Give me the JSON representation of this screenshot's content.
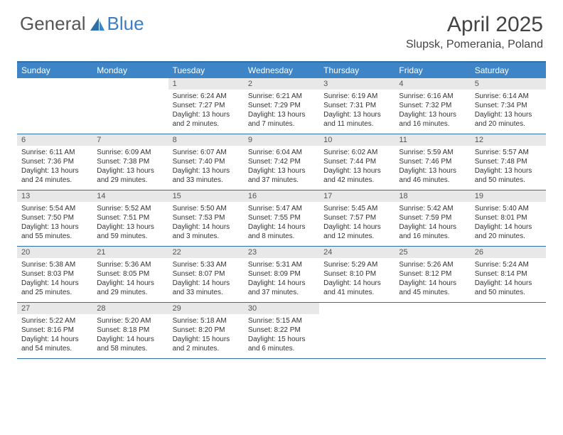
{
  "logo": {
    "part1": "General",
    "part2": "Blue"
  },
  "title": "April 2025",
  "location": "Slupsk, Pomerania, Poland",
  "colors": {
    "header_bg": "#3d85c6",
    "border": "#2f6fa8",
    "date_bg": "#e8e8e8",
    "text": "#333333"
  },
  "dayNames": [
    "Sunday",
    "Monday",
    "Tuesday",
    "Wednesday",
    "Thursday",
    "Friday",
    "Saturday"
  ],
  "weeks": [
    [
      {
        "empty": true
      },
      {
        "empty": true
      },
      {
        "date": "1",
        "sunrise": "Sunrise: 6:24 AM",
        "sunset": "Sunset: 7:27 PM",
        "daylight1": "Daylight: 13 hours",
        "daylight2": "and 2 minutes."
      },
      {
        "date": "2",
        "sunrise": "Sunrise: 6:21 AM",
        "sunset": "Sunset: 7:29 PM",
        "daylight1": "Daylight: 13 hours",
        "daylight2": "and 7 minutes."
      },
      {
        "date": "3",
        "sunrise": "Sunrise: 6:19 AM",
        "sunset": "Sunset: 7:31 PM",
        "daylight1": "Daylight: 13 hours",
        "daylight2": "and 11 minutes."
      },
      {
        "date": "4",
        "sunrise": "Sunrise: 6:16 AM",
        "sunset": "Sunset: 7:32 PM",
        "daylight1": "Daylight: 13 hours",
        "daylight2": "and 16 minutes."
      },
      {
        "date": "5",
        "sunrise": "Sunrise: 6:14 AM",
        "sunset": "Sunset: 7:34 PM",
        "daylight1": "Daylight: 13 hours",
        "daylight2": "and 20 minutes."
      }
    ],
    [
      {
        "date": "6",
        "sunrise": "Sunrise: 6:11 AM",
        "sunset": "Sunset: 7:36 PM",
        "daylight1": "Daylight: 13 hours",
        "daylight2": "and 24 minutes."
      },
      {
        "date": "7",
        "sunrise": "Sunrise: 6:09 AM",
        "sunset": "Sunset: 7:38 PM",
        "daylight1": "Daylight: 13 hours",
        "daylight2": "and 29 minutes."
      },
      {
        "date": "8",
        "sunrise": "Sunrise: 6:07 AM",
        "sunset": "Sunset: 7:40 PM",
        "daylight1": "Daylight: 13 hours",
        "daylight2": "and 33 minutes."
      },
      {
        "date": "9",
        "sunrise": "Sunrise: 6:04 AM",
        "sunset": "Sunset: 7:42 PM",
        "daylight1": "Daylight: 13 hours",
        "daylight2": "and 37 minutes."
      },
      {
        "date": "10",
        "sunrise": "Sunrise: 6:02 AM",
        "sunset": "Sunset: 7:44 PM",
        "daylight1": "Daylight: 13 hours",
        "daylight2": "and 42 minutes."
      },
      {
        "date": "11",
        "sunrise": "Sunrise: 5:59 AM",
        "sunset": "Sunset: 7:46 PM",
        "daylight1": "Daylight: 13 hours",
        "daylight2": "and 46 minutes."
      },
      {
        "date": "12",
        "sunrise": "Sunrise: 5:57 AM",
        "sunset": "Sunset: 7:48 PM",
        "daylight1": "Daylight: 13 hours",
        "daylight2": "and 50 minutes."
      }
    ],
    [
      {
        "date": "13",
        "sunrise": "Sunrise: 5:54 AM",
        "sunset": "Sunset: 7:50 PM",
        "daylight1": "Daylight: 13 hours",
        "daylight2": "and 55 minutes."
      },
      {
        "date": "14",
        "sunrise": "Sunrise: 5:52 AM",
        "sunset": "Sunset: 7:51 PM",
        "daylight1": "Daylight: 13 hours",
        "daylight2": "and 59 minutes."
      },
      {
        "date": "15",
        "sunrise": "Sunrise: 5:50 AM",
        "sunset": "Sunset: 7:53 PM",
        "daylight1": "Daylight: 14 hours",
        "daylight2": "and 3 minutes."
      },
      {
        "date": "16",
        "sunrise": "Sunrise: 5:47 AM",
        "sunset": "Sunset: 7:55 PM",
        "daylight1": "Daylight: 14 hours",
        "daylight2": "and 8 minutes."
      },
      {
        "date": "17",
        "sunrise": "Sunrise: 5:45 AM",
        "sunset": "Sunset: 7:57 PM",
        "daylight1": "Daylight: 14 hours",
        "daylight2": "and 12 minutes."
      },
      {
        "date": "18",
        "sunrise": "Sunrise: 5:42 AM",
        "sunset": "Sunset: 7:59 PM",
        "daylight1": "Daylight: 14 hours",
        "daylight2": "and 16 minutes."
      },
      {
        "date": "19",
        "sunrise": "Sunrise: 5:40 AM",
        "sunset": "Sunset: 8:01 PM",
        "daylight1": "Daylight: 14 hours",
        "daylight2": "and 20 minutes."
      }
    ],
    [
      {
        "date": "20",
        "sunrise": "Sunrise: 5:38 AM",
        "sunset": "Sunset: 8:03 PM",
        "daylight1": "Daylight: 14 hours",
        "daylight2": "and 25 minutes."
      },
      {
        "date": "21",
        "sunrise": "Sunrise: 5:36 AM",
        "sunset": "Sunset: 8:05 PM",
        "daylight1": "Daylight: 14 hours",
        "daylight2": "and 29 minutes."
      },
      {
        "date": "22",
        "sunrise": "Sunrise: 5:33 AM",
        "sunset": "Sunset: 8:07 PM",
        "daylight1": "Daylight: 14 hours",
        "daylight2": "and 33 minutes."
      },
      {
        "date": "23",
        "sunrise": "Sunrise: 5:31 AM",
        "sunset": "Sunset: 8:09 PM",
        "daylight1": "Daylight: 14 hours",
        "daylight2": "and 37 minutes."
      },
      {
        "date": "24",
        "sunrise": "Sunrise: 5:29 AM",
        "sunset": "Sunset: 8:10 PM",
        "daylight1": "Daylight: 14 hours",
        "daylight2": "and 41 minutes."
      },
      {
        "date": "25",
        "sunrise": "Sunrise: 5:26 AM",
        "sunset": "Sunset: 8:12 PM",
        "daylight1": "Daylight: 14 hours",
        "daylight2": "and 45 minutes."
      },
      {
        "date": "26",
        "sunrise": "Sunrise: 5:24 AM",
        "sunset": "Sunset: 8:14 PM",
        "daylight1": "Daylight: 14 hours",
        "daylight2": "and 50 minutes."
      }
    ],
    [
      {
        "date": "27",
        "sunrise": "Sunrise: 5:22 AM",
        "sunset": "Sunset: 8:16 PM",
        "daylight1": "Daylight: 14 hours",
        "daylight2": "and 54 minutes."
      },
      {
        "date": "28",
        "sunrise": "Sunrise: 5:20 AM",
        "sunset": "Sunset: 8:18 PM",
        "daylight1": "Daylight: 14 hours",
        "daylight2": "and 58 minutes."
      },
      {
        "date": "29",
        "sunrise": "Sunrise: 5:18 AM",
        "sunset": "Sunset: 8:20 PM",
        "daylight1": "Daylight: 15 hours",
        "daylight2": "and 2 minutes."
      },
      {
        "date": "30",
        "sunrise": "Sunrise: 5:15 AM",
        "sunset": "Sunset: 8:22 PM",
        "daylight1": "Daylight: 15 hours",
        "daylight2": "and 6 minutes."
      },
      {
        "empty": true
      },
      {
        "empty": true
      },
      {
        "empty": true
      }
    ]
  ]
}
